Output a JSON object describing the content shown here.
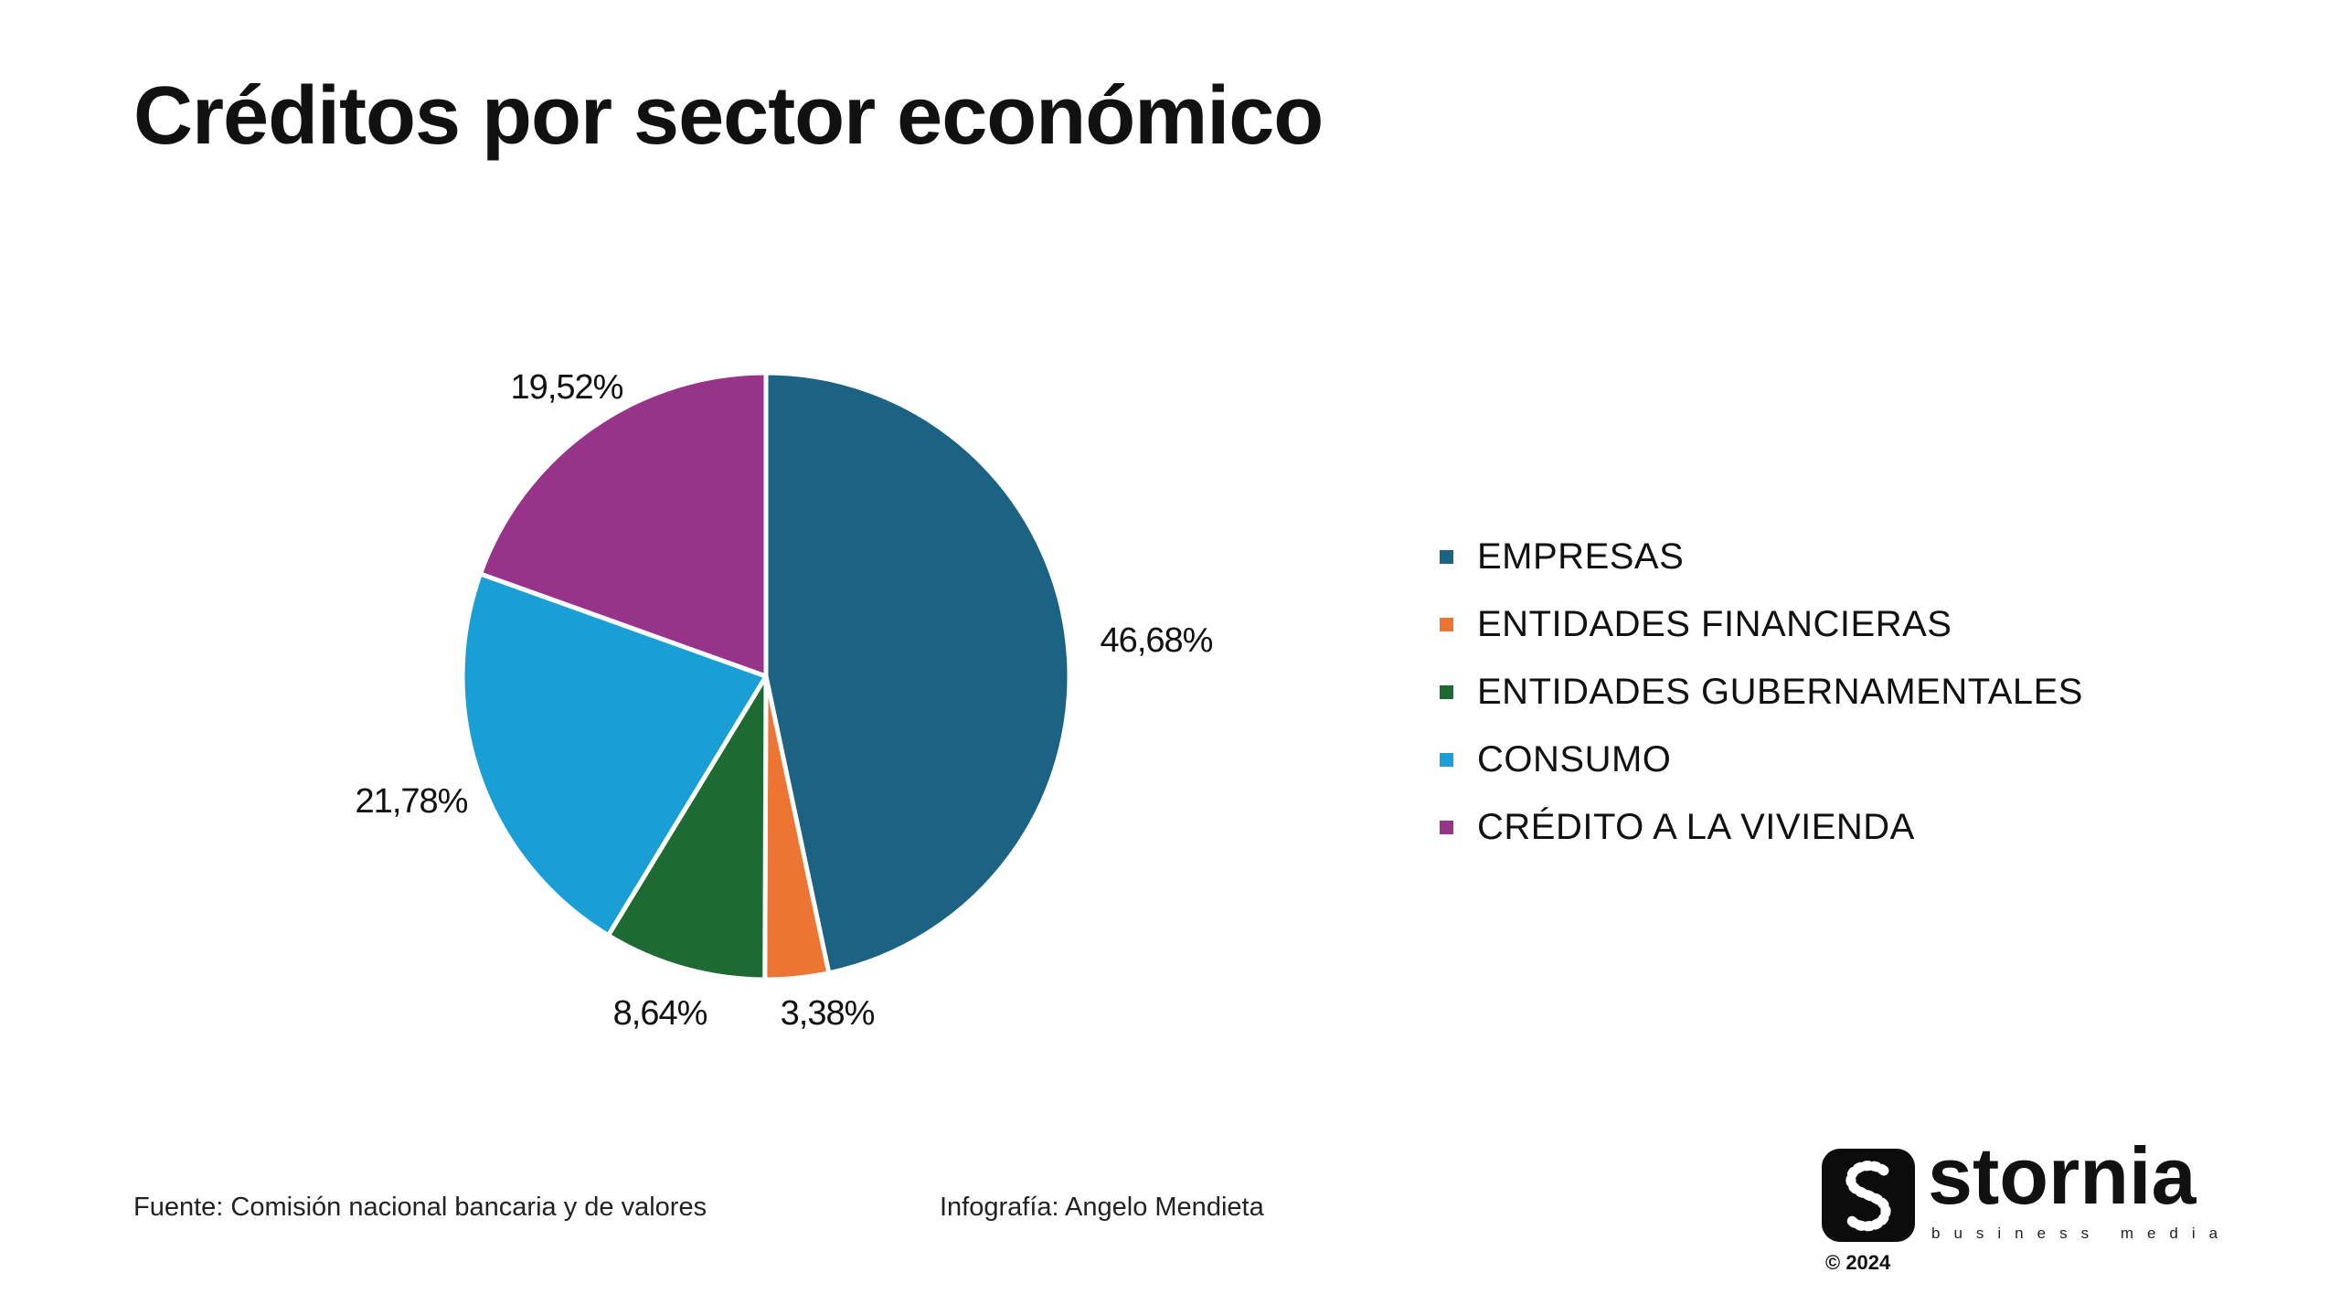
{
  "chart_data": {
    "type": "pie",
    "title": "Créditos por sector económico",
    "categories": [
      "EMPRESAS",
      "ENTIDADES FINANCIERAS",
      "ENTIDADES GUBERNAMENTALES",
      "CONSUMO",
      "CRÉDITO A LA VIVIENDA"
    ],
    "values": [
      46.68,
      3.38,
      8.64,
      21.78,
      19.52
    ],
    "value_labels": [
      "46,68%",
      "3,38%",
      "8,64%",
      "21,78%",
      "19,52%"
    ],
    "colors": [
      "#1b6283",
      "#ec7533",
      "#1d6b32",
      "#1a9ed6",
      "#973489"
    ],
    "legend_position": "right",
    "start_angle": "12 o'clock, clockwise"
  },
  "footer": {
    "source": "Fuente: Comisión nacional bancaria y de valores",
    "credit": "Infografía: Angelo Mendieta"
  },
  "logo": {
    "wordmark": "stornia",
    "tagline": "business media",
    "copyright": "© 2024",
    "icon": "stornia-s-logo-icon"
  }
}
